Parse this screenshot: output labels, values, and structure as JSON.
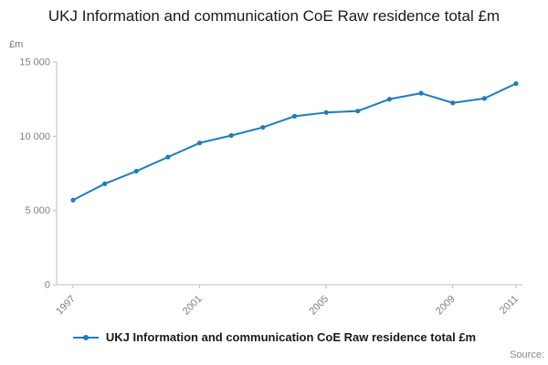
{
  "title": "UKJ Information and communication CoE Raw residence total £m",
  "y_unit": "£m",
  "source_label": "Source:",
  "legend": {
    "label": "UKJ Information and communication CoE Raw residence total £m"
  },
  "chart_data": {
    "type": "line",
    "title": "UKJ Information and communication CoE Raw residence total £m",
    "xlabel": "",
    "ylabel": "£m",
    "x": [
      1997,
      1998,
      1999,
      2000,
      2001,
      2002,
      2003,
      2004,
      2005,
      2006,
      2007,
      2008,
      2009,
      2010,
      2011
    ],
    "values": [
      5700,
      6800,
      7650,
      8600,
      9550,
      10050,
      10600,
      11350,
      11600,
      11700,
      12500,
      12900,
      12250,
      12550,
      13550
    ],
    "series_name": "UKJ Information and communication CoE Raw residence total £m",
    "x_ticks": [
      1997,
      2001,
      2005,
      2009,
      2011
    ],
    "y_ticks": [
      {
        "value": 0,
        "label": "0"
      },
      {
        "value": 5000,
        "label": "5 000"
      },
      {
        "value": 10000,
        "label": "10 000"
      },
      {
        "value": 15000,
        "label": "15 000"
      }
    ],
    "ylim": [
      0,
      15000
    ],
    "grid": false,
    "markers": true,
    "legend_position": "bottom",
    "line_color": "#1d7dbf",
    "axis_color": "#bdbdbd",
    "tick_text_color": "#7f7f7f"
  }
}
